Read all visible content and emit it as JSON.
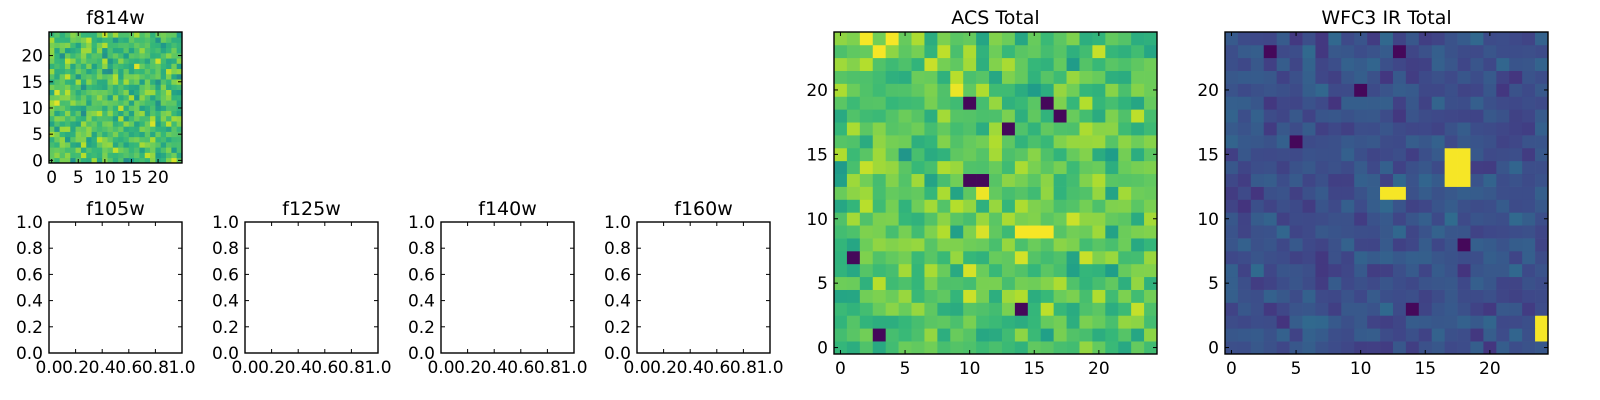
{
  "figure": {
    "background": "#ffffff"
  },
  "chart_data": [
    {
      "id": "f814w",
      "type": "heatmap",
      "title": "f814w",
      "colormap": "viridis",
      "grid_size": [
        25,
        25
      ],
      "xlim": [
        -0.5,
        24.5
      ],
      "ylim": [
        -0.5,
        24.5
      ],
      "xticks": [
        0,
        5,
        10,
        15,
        20
      ],
      "yticks": [
        0,
        5,
        10,
        15,
        20
      ],
      "value_range": [
        0,
        1
      ],
      "value_mean": 0.72,
      "value_spread": 0.16,
      "seed": 101
    },
    {
      "id": "f105w",
      "type": "empty",
      "title": "f105w",
      "xlim": [
        0,
        1
      ],
      "ylim": [
        0,
        1
      ],
      "xticks": [
        "0.0",
        "0.2",
        "0.4",
        "0.6",
        "0.8",
        "1.0"
      ],
      "yticks": [
        "0.0",
        "0.2",
        "0.4",
        "0.6",
        "0.8",
        "1.0"
      ]
    },
    {
      "id": "f125w",
      "type": "empty",
      "title": "f125w",
      "xlim": [
        0,
        1
      ],
      "ylim": [
        0,
        1
      ],
      "xticks": [
        "0.0",
        "0.2",
        "0.4",
        "0.6",
        "0.8",
        "1.0"
      ],
      "yticks": [
        "0.0",
        "0.2",
        "0.4",
        "0.6",
        "0.8",
        "1.0"
      ]
    },
    {
      "id": "f140w",
      "type": "empty",
      "title": "f140w",
      "xlim": [
        0,
        1
      ],
      "ylim": [
        0,
        1
      ],
      "xticks": [
        "0.0",
        "0.2",
        "0.4",
        "0.6",
        "0.8",
        "1.0"
      ],
      "yticks": [
        "0.0",
        "0.2",
        "0.4",
        "0.6",
        "0.8",
        "1.0"
      ]
    },
    {
      "id": "f160w",
      "type": "empty",
      "title": "f160w",
      "xlim": [
        0,
        1
      ],
      "ylim": [
        0,
        1
      ],
      "xticks": [
        "0.0",
        "0.2",
        "0.4",
        "0.6",
        "0.8",
        "1.0"
      ],
      "yticks": [
        "0.0",
        "0.2",
        "0.4",
        "0.6",
        "0.8",
        "1.0"
      ]
    },
    {
      "id": "acs-total",
      "type": "heatmap",
      "title": "ACS Total",
      "colormap": "viridis",
      "grid_size": [
        25,
        25
      ],
      "xlim": [
        -0.5,
        24.5
      ],
      "ylim": [
        -0.5,
        24.5
      ],
      "xticks": [
        0,
        5,
        10,
        15,
        20
      ],
      "yticks": [
        0,
        5,
        10,
        15,
        20
      ],
      "value_range": [
        0,
        1
      ],
      "value_mean": 0.74,
      "value_spread": 0.15,
      "seed": 202,
      "low_pixels": [
        [
          10,
          19
        ],
        [
          16,
          19
        ],
        [
          17,
          18
        ],
        [
          13,
          17
        ],
        [
          10,
          13
        ],
        [
          11,
          13
        ],
        [
          3,
          1
        ],
        [
          14,
          3
        ],
        [
          1,
          7
        ]
      ],
      "high_pixels": [
        [
          14,
          9
        ],
        [
          15,
          9
        ],
        [
          16,
          9
        ],
        [
          3,
          23
        ],
        [
          4,
          24
        ],
        [
          2,
          24
        ]
      ]
    },
    {
      "id": "wfc3-ir-total",
      "type": "heatmap",
      "title": "WFC3 IR Total",
      "colormap": "viridis",
      "grid_size": [
        25,
        25
      ],
      "xlim": [
        -0.5,
        24.5
      ],
      "ylim": [
        -0.5,
        24.5
      ],
      "xticks": [
        0,
        5,
        10,
        15,
        20
      ],
      "yticks": [
        0,
        5,
        10,
        15,
        20
      ],
      "value_range": [
        0,
        1
      ],
      "value_mean": 0.25,
      "value_spread": 0.07,
      "seed": 303,
      "high_pixels": [
        [
          17,
          15
        ],
        [
          18,
          15
        ],
        [
          17,
          14
        ],
        [
          18,
          14
        ],
        [
          17,
          13
        ],
        [
          18,
          13
        ],
        [
          12,
          12
        ],
        [
          13,
          12
        ],
        [
          24,
          2
        ],
        [
          24,
          1
        ]
      ],
      "low_pixels": [
        [
          3,
          23
        ],
        [
          10,
          20
        ],
        [
          13,
          23
        ],
        [
          18,
          8
        ],
        [
          14,
          3
        ],
        [
          5,
          16
        ]
      ]
    }
  ]
}
